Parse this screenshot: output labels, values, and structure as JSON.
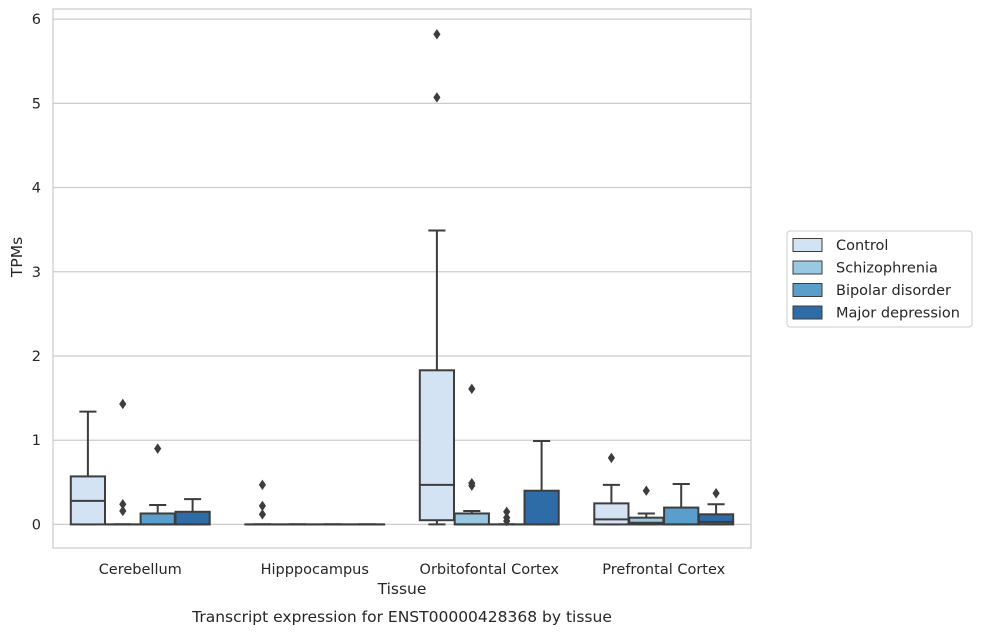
{
  "chart_data": {
    "type": "box",
    "caption": "Transcript expression for ENST00000428368 by tissue",
    "xlabel": "Tissue",
    "ylabel": "TPMs",
    "ylim": [
      -0.28,
      6.12
    ],
    "yticks": [
      0,
      1,
      2,
      3,
      4,
      5,
      6
    ],
    "grid": true,
    "legend_position": "right",
    "categories": [
      "Cerebellum",
      "Hipppocampus",
      "Orbitofontal Cortex",
      "Prefrontal Cortex"
    ],
    "series": [
      {
        "name": "Control",
        "color": "#d3e3f3",
        "boxes": [
          {
            "whislo": 0,
            "q1": 0,
            "med": 0.28,
            "q3": 0.57,
            "whishi": 1.34,
            "fliers": []
          },
          {
            "whislo": 0,
            "q1": 0,
            "med": 0,
            "q3": 0,
            "whishi": 0,
            "fliers": [
              0.12,
              0.22,
              0.47
            ]
          },
          {
            "whislo": 0,
            "q1": 0.05,
            "med": 0.47,
            "q3": 1.83,
            "whishi": 3.49,
            "fliers": [
              5.07,
              5.82
            ]
          },
          {
            "whislo": 0,
            "q1": 0,
            "med": 0.06,
            "q3": 0.25,
            "whishi": 0.47,
            "fliers": [
              0.79
            ]
          }
        ]
      },
      {
        "name": "Schizophrenia",
        "color": "#9ac8e0",
        "boxes": [
          {
            "whislo": 0,
            "q1": 0,
            "med": 0,
            "q3": 0,
            "whishi": 0,
            "fliers": [
              0.16,
              0.24,
              1.43
            ]
          },
          {
            "whislo": 0,
            "q1": 0,
            "med": 0,
            "q3": 0,
            "whishi": 0,
            "fliers": []
          },
          {
            "whislo": 0,
            "q1": 0,
            "med": 0,
            "q3": 0.13,
            "whishi": 0.16,
            "fliers": [
              0.46,
              0.49,
              1.61
            ]
          },
          {
            "whislo": 0,
            "q1": 0,
            "med": 0.02,
            "q3": 0.08,
            "whishi": 0.13,
            "fliers": [
              0.4
            ]
          }
        ]
      },
      {
        "name": "Bipolar disorder",
        "color": "#5a9ecb",
        "boxes": [
          {
            "whislo": 0,
            "q1": 0,
            "med": 0,
            "q3": 0.13,
            "whishi": 0.23,
            "fliers": [
              0.9
            ]
          },
          {
            "whislo": 0,
            "q1": 0,
            "med": 0,
            "q3": 0,
            "whishi": 0,
            "fliers": []
          },
          {
            "whislo": 0,
            "q1": 0,
            "med": 0,
            "q3": 0,
            "whishi": 0,
            "fliers": [
              0.04,
              0.08,
              0.15
            ]
          },
          {
            "whislo": 0,
            "q1": 0,
            "med": 0,
            "q3": 0.2,
            "whishi": 0.48,
            "fliers": []
          }
        ]
      },
      {
        "name": "Major depression",
        "color": "#2e6ca8",
        "boxes": [
          {
            "whislo": 0,
            "q1": 0,
            "med": 0,
            "q3": 0.15,
            "whishi": 0.3,
            "fliers": []
          },
          {
            "whislo": 0,
            "q1": 0,
            "med": 0,
            "q3": 0,
            "whishi": 0,
            "fliers": []
          },
          {
            "whislo": 0,
            "q1": 0,
            "med": 0,
            "q3": 0.4,
            "whishi": 0.99,
            "fliers": []
          },
          {
            "whislo": 0,
            "q1": 0,
            "med": 0.03,
            "q3": 0.12,
            "whishi": 0.24,
            "fliers": [
              0.37
            ]
          }
        ]
      }
    ]
  }
}
